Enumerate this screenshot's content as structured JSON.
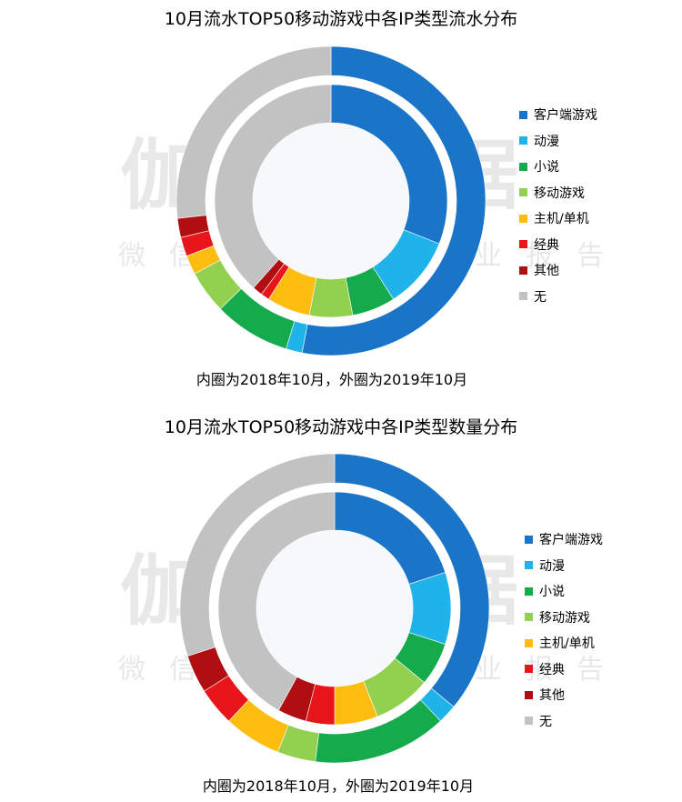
{
  "watermark": {
    "main": "伽马数据",
    "sub": "微信号：游戏产业报告"
  },
  "chart_data": [
    {
      "type": "pie",
      "title": "10月流水TOP50移动游戏中各IP类型流水分布",
      "caption": "内圈为2018年10月，外圈为2019年10月",
      "categories": [
        "客户端游戏",
        "动漫",
        "小说",
        "移动游戏",
        "主机/单机",
        "经典",
        "其他",
        "无"
      ],
      "colors": [
        "#1a75c8",
        "#1fb3ea",
        "#15aa4b",
        "#92d150",
        "#fdbd0f",
        "#e8161a",
        "#b00e12",
        "#c2c2c2"
      ],
      "series": [
        {
          "values": [
            31.0,
            10.0,
            6.0,
            6.0,
            6.0,
            1.2,
            1.4,
            38.4
          ]
        },
        {
          "values": [
            53.0,
            1.7,
            8.0,
            4.5,
            2.0,
            2.0,
            2.0,
            26.8
          ]
        }
      ],
      "legend": "right"
    },
    {
      "type": "pie",
      "title": "10月流水TOP50移动游戏中各IP类型数量分布",
      "caption": "内圈为2018年10月，外圈为2019年10月",
      "categories": [
        "客户端游戏",
        "动漫",
        "小说",
        "移动游戏",
        "主机/单机",
        "经典",
        "其他",
        "无"
      ],
      "colors": [
        "#1a75c8",
        "#1fb3ea",
        "#15aa4b",
        "#92d150",
        "#fdbd0f",
        "#e8161a",
        "#b00e12",
        "#c2c2c2"
      ],
      "series": [
        {
          "values": [
            20,
            10,
            6,
            8,
            6,
            4,
            4,
            42
          ]
        },
        {
          "values": [
            36,
            2,
            14,
            4,
            6,
            4,
            4,
            30
          ]
        }
      ],
      "legend": "right"
    }
  ]
}
